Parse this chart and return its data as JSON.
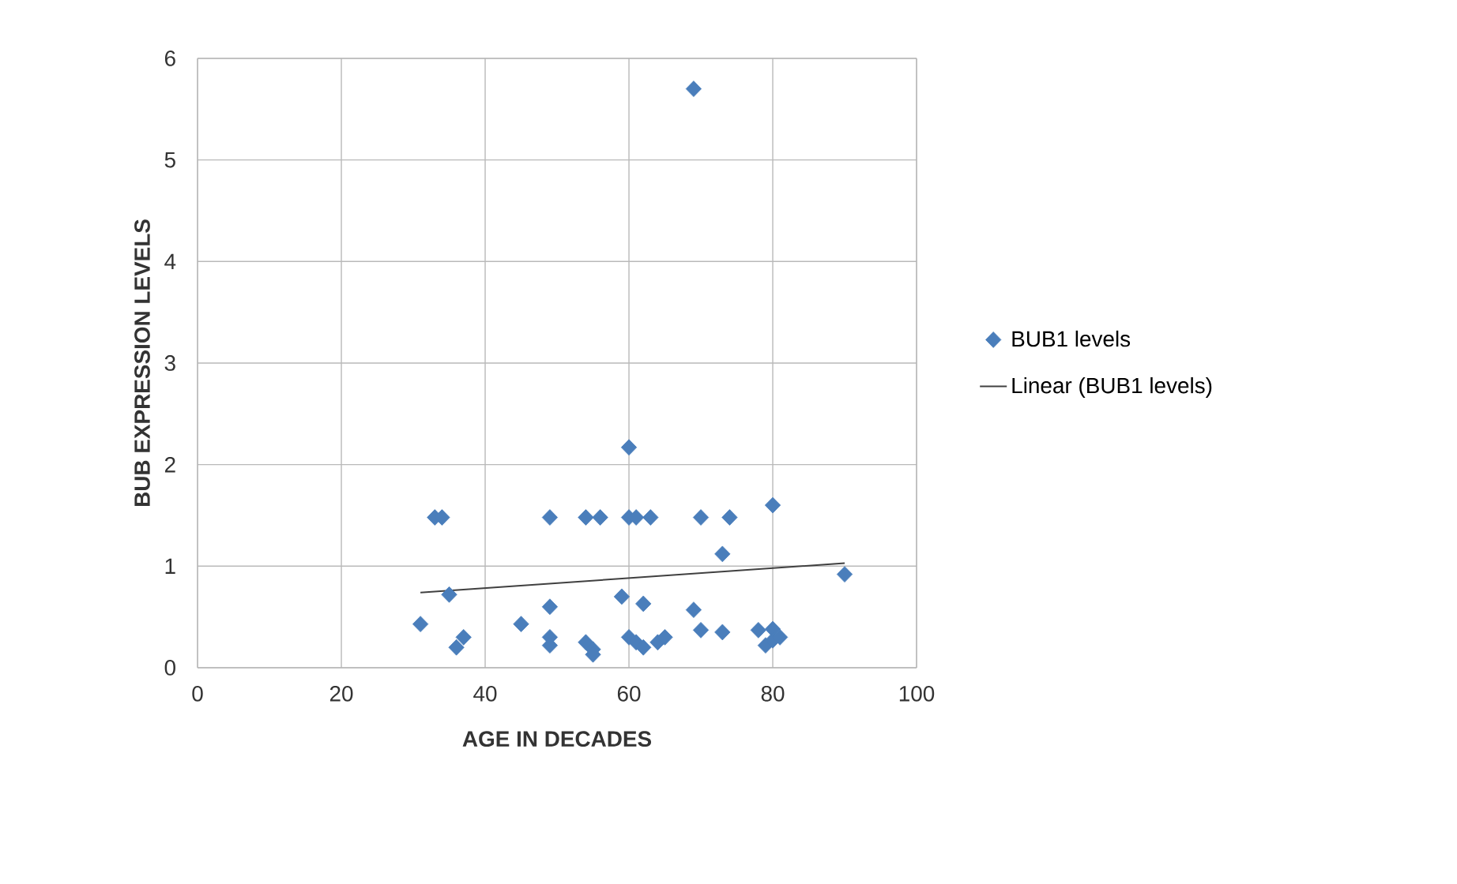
{
  "chart_data": {
    "type": "scatter",
    "xlabel": "AGE IN  DECADES",
    "ylabel": "BUB EXPRESSION LEVELS",
    "xlim": [
      0,
      100
    ],
    "xticks": [
      0,
      20,
      40,
      60,
      80,
      100
    ],
    "ylim": [
      0,
      6
    ],
    "yticks": [
      0,
      1,
      2,
      3,
      4,
      5,
      6
    ],
    "grid": true,
    "legend": "right",
    "series": [
      {
        "name": "BUB1 levels",
        "color": "#4a7ebb",
        "marker": "diamond",
        "x": [
          31,
          33,
          34,
          35,
          36,
          37,
          45,
          49,
          49,
          49,
          49,
          54,
          54,
          55,
          55,
          56,
          59,
          60,
          60,
          60,
          61,
          61,
          62,
          62,
          63,
          64,
          65,
          69,
          69,
          70,
          70,
          73,
          73,
          74,
          78,
          79,
          80,
          80,
          80,
          81,
          90
        ],
        "values": [
          0.43,
          1.48,
          1.48,
          0.72,
          0.2,
          0.3,
          0.43,
          1.48,
          0.6,
          0.3,
          0.22,
          1.48,
          0.25,
          0.18,
          0.13,
          1.48,
          0.7,
          2.17,
          1.48,
          0.3,
          1.48,
          0.25,
          0.63,
          0.2,
          1.48,
          0.25,
          0.3,
          5.7,
          0.57,
          1.48,
          0.37,
          1.12,
          0.35,
          1.48,
          0.37,
          0.22,
          1.6,
          0.38,
          0.27,
          0.3,
          0.92
        ]
      },
      {
        "name": "Linear (BUB1 levels)",
        "type": "line",
        "marker": "none",
        "color": "#404040",
        "x": [
          31,
          90
        ],
        "values": [
          0.74,
          1.03
        ]
      }
    ]
  }
}
